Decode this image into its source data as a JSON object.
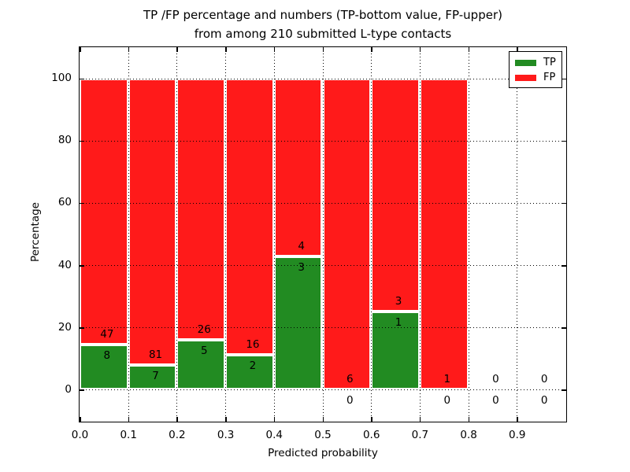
{
  "figure": {
    "title_line1": "TP /FP percentage and numbers (TP-bottom value, FP-upper)",
    "title_line2": "from among 210 submitted L-type contacts"
  },
  "chart_data": {
    "type": "bar",
    "stacked": true,
    "orientation": "vertical",
    "title": "TP /FP percentage and numbers (TP-bottom value, FP-upper)\nfrom among 210 submitted L-type contacts",
    "xlabel": "Predicted probability",
    "ylabel": "Percentage",
    "xlim": [
      0.0,
      1.0
    ],
    "ylim": [
      -10,
      110
    ],
    "x_tick_values": [
      0.0,
      0.1,
      0.2,
      0.3,
      0.4,
      0.5,
      0.6,
      0.7,
      0.8,
      0.9
    ],
    "x_tick_labels": [
      "0.0",
      "0.1",
      "0.2",
      "0.3",
      "0.4",
      "0.5",
      "0.6",
      "0.7",
      "0.8",
      "0.9"
    ],
    "y_tick_values": [
      0,
      20,
      40,
      60,
      80,
      100
    ],
    "y_tick_labels": [
      "0",
      "20",
      "40",
      "60",
      "80",
      "100"
    ],
    "grid": true,
    "grid_style": "dotted",
    "bin_width": 0.1,
    "bin_starts": [
      0.0,
      0.1,
      0.2,
      0.3,
      0.4,
      0.5,
      0.6,
      0.7,
      0.8,
      0.9
    ],
    "series": [
      {
        "name": "TP",
        "color": "#228b22",
        "counts": [
          8,
          7,
          5,
          2,
          3,
          0,
          1,
          0,
          0,
          0
        ]
      },
      {
        "name": "FP",
        "color": "#ff1a1a",
        "counts": [
          47,
          81,
          26,
          16,
          4,
          6,
          3,
          1,
          0,
          0
        ]
      }
    ],
    "tp_percent_per_bin": [
      14.5,
      8.0,
      16.1,
      11.1,
      42.9,
      0.0,
      25.0,
      0.0,
      null,
      null
    ],
    "bar_total_height_percent": 100,
    "total_contacts": 210,
    "legend": {
      "position": "upper right",
      "entries": [
        {
          "label": "TP",
          "color": "#228b22"
        },
        {
          "label": "FP",
          "color": "#ff1a1a"
        }
      ]
    }
  }
}
